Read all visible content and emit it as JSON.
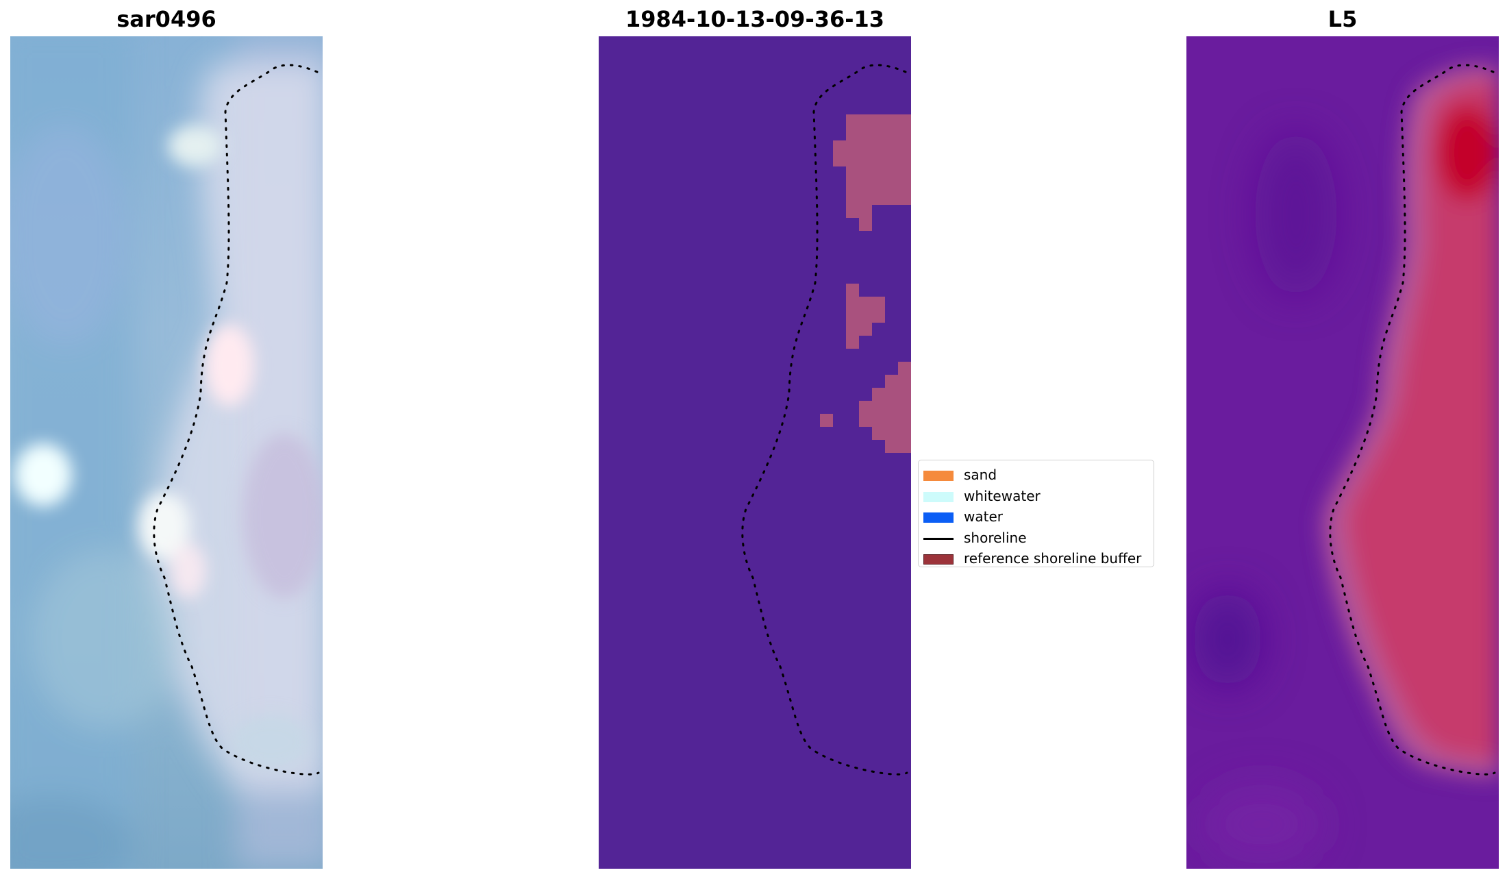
{
  "panels": [
    {
      "title": "sar0496",
      "kind": "rgb"
    },
    {
      "title": "1984-10-13-09-36-13",
      "kind": "classification"
    },
    {
      "title": "L5",
      "kind": "index"
    }
  ],
  "legend": {
    "items": [
      {
        "label": "sand",
        "type": "patch",
        "color": "#f58a3c"
      },
      {
        "label": "whitewater",
        "type": "patch",
        "color": "#cdfbfb"
      },
      {
        "label": "water",
        "type": "patch",
        "color": "#0b5ef5"
      },
      {
        "label": "shoreline",
        "type": "line",
        "color": "#000000"
      },
      {
        "label": "reference shoreline buffer",
        "type": "patch",
        "color": "#9c333a"
      }
    ]
  },
  "colors": {
    "classification_background": "#532496",
    "classification_highlight": "#a9517e",
    "index_low": "#6a1c9e",
    "index_high": "#c33a6d",
    "index_peak": "#c4002a",
    "shoreline_dots": "#000000"
  }
}
